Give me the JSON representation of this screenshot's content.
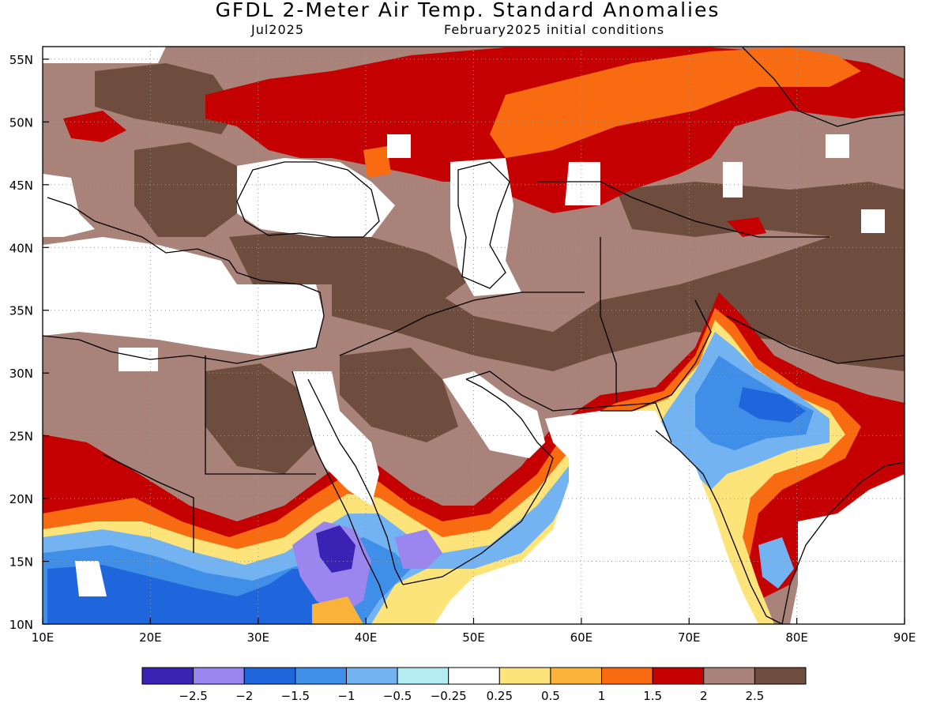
{
  "header": {
    "title": "GFDL 2-Meter Air Temp. Standard Anomalies",
    "valid_month": "Jul2025",
    "init_conditions": "February2025 initial conditions"
  },
  "map": {
    "lon_range": [
      10,
      90
    ],
    "lat_range": [
      10,
      56
    ],
    "lon_ticks": [
      {
        "value": 10,
        "label": "10E"
      },
      {
        "value": 20,
        "label": "20E"
      },
      {
        "value": 30,
        "label": "30E"
      },
      {
        "value": 40,
        "label": "40E"
      },
      {
        "value": 50,
        "label": "50E"
      },
      {
        "value": 60,
        "label": "60E"
      },
      {
        "value": 70,
        "label": "70E"
      },
      {
        "value": 80,
        "label": "80E"
      },
      {
        "value": 90,
        "label": "90E"
      }
    ],
    "lat_ticks": [
      {
        "value": 10,
        "label": "10N"
      },
      {
        "value": 15,
        "label": "15N"
      },
      {
        "value": 20,
        "label": "20N"
      },
      {
        "value": 25,
        "label": "25N"
      },
      {
        "value": 30,
        "label": "30N"
      },
      {
        "value": 35,
        "label": "35N"
      },
      {
        "value": 40,
        "label": "40N"
      },
      {
        "value": 45,
        "label": "45N"
      },
      {
        "value": 50,
        "label": "50N"
      },
      {
        "value": 55,
        "label": "55N"
      }
    ],
    "gridlines": "dotted"
  },
  "colorbar": {
    "colors": [
      "#3a22b4",
      "#9a86ee",
      "#1f66dc",
      "#3f8ee8",
      "#74b3f2",
      "#b5ecf4",
      "#ffffff",
      "#fde47a",
      "#fbb23a",
      "#f86b10",
      "#c40000",
      "#a9837a",
      "#6e4c3e"
    ],
    "labels": [
      "-2.5",
      "-2",
      "-1.5",
      "-1",
      "-0.5",
      "-0.25",
      "0.25",
      "0.5",
      "1",
      "1.5",
      "2",
      "2.5"
    ]
  }
}
